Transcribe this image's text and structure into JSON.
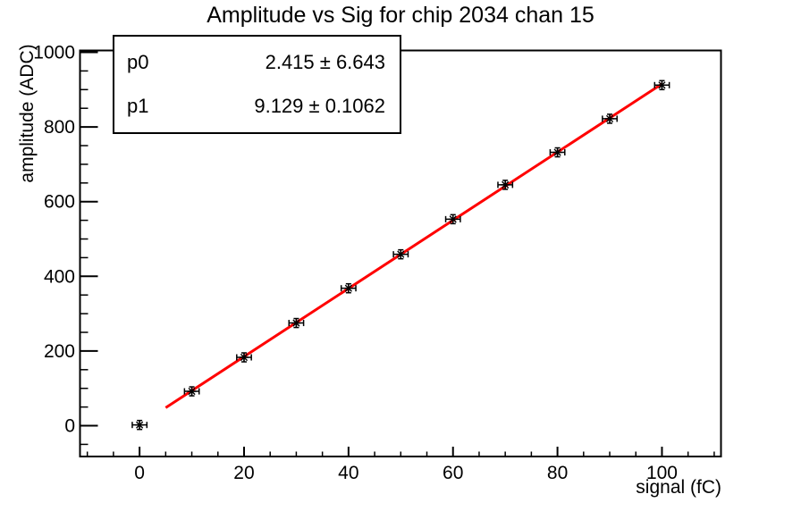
{
  "window": {
    "background": "#ffffff",
    "foreground": "#000000"
  },
  "chart_data": {
    "type": "scatter",
    "title": "Amplitude vs Sig for chip 2034 chan 15",
    "xlabel": "signal (fC)",
    "ylabel": "amplitude (ADC)",
    "x": [
      0,
      10,
      20,
      30,
      40,
      50,
      60,
      70,
      80,
      90,
      100
    ],
    "y": [
      2,
      92,
      183,
      275,
      368,
      459,
      553,
      645,
      732,
      822,
      912
    ],
    "x_error": 1.4,
    "y_error": 12,
    "xlim": [
      -11.4,
      111.3
    ],
    "ylim": [
      -82.5,
      1004.8
    ],
    "x_major_ticks": [
      0,
      20,
      40,
      60,
      80,
      100
    ],
    "x_minor_step": 5,
    "y_major_ticks": [
      0,
      200,
      400,
      600,
      800,
      1000
    ],
    "y_minor_step": 50,
    "grid": false,
    "legend": "none",
    "marker": {
      "style": "asterisk",
      "color": "#000000"
    },
    "fit": {
      "type": "linear",
      "p0": 2.415,
      "p1": 9.129,
      "x_range": [
        5,
        100
      ],
      "color": "#ff0000"
    },
    "stats_box": {
      "rows": [
        {
          "name": "p0",
          "value": "2.415 ± 6.643"
        },
        {
          "name": "p1",
          "value": "9.129 ± 0.1062"
        }
      ]
    }
  }
}
